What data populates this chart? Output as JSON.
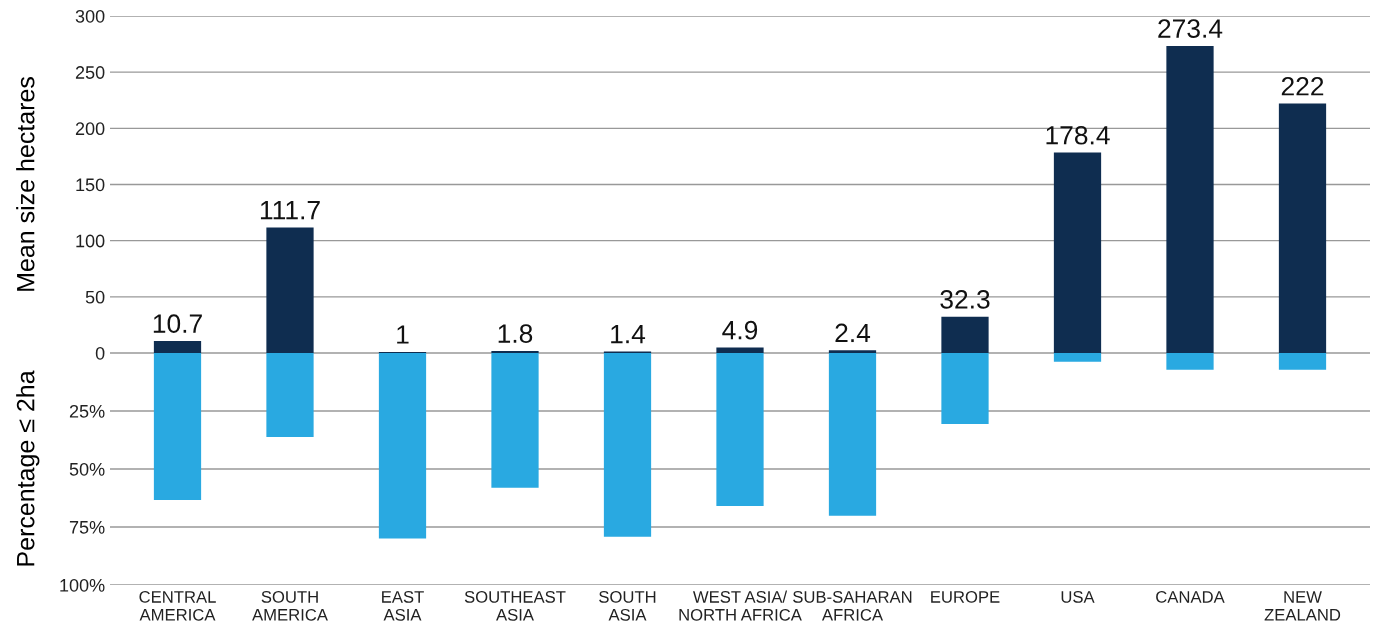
{
  "chart_data": [
    {
      "type": "bar",
      "ylabel": "Mean size hectares",
      "series": [
        {
          "color": "#0f2d50",
          "values": [
            10.7,
            111.7,
            1,
            1.8,
            1.4,
            4.9,
            2.4,
            32.3,
            178.4,
            273.4,
            222
          ]
        }
      ],
      "ylim": [
        0,
        300
      ],
      "yticks": [
        0,
        50,
        100,
        150,
        200,
        250,
        300
      ],
      "grid": "y",
      "data_labels": true,
      "tick_labels": "y",
      "legend": false
    },
    {
      "type": "bar",
      "ylabel": "Percentage ≤ 2ha",
      "categories": [
        "CENTRAL\nAMERICA",
        "SOUTH\nAMERICA",
        "EAST\nASIA",
        "SOUTHEAST\nASIA",
        "SOUTH\nASIA",
        "WEST ASIA/\nNORTH AFRICA",
        "SUB-SAHARAN\nAFRICA",
        "EUROPE",
        "USA",
        "CANADA",
        "NEW\nZEALAND"
      ],
      "series": [
        {
          "color": "#29a9e1",
          "values": [
            63.4,
            36.2,
            80,
            58.1,
            79.2,
            66,
            70.2,
            30.6,
            3.8,
            7.2,
            7.2
          ]
        }
      ],
      "ylim": [
        100,
        0
      ],
      "yticks": [
        {
          "value": 0,
          "label": null
        },
        {
          "value": 25,
          "label": "25%"
        },
        {
          "value": 50,
          "label": "50%"
        },
        {
          "value": 75,
          "label": "75%"
        },
        {
          "value": 100,
          "label": "100%"
        }
      ],
      "grid": "y",
      "legend": false
    }
  ]
}
